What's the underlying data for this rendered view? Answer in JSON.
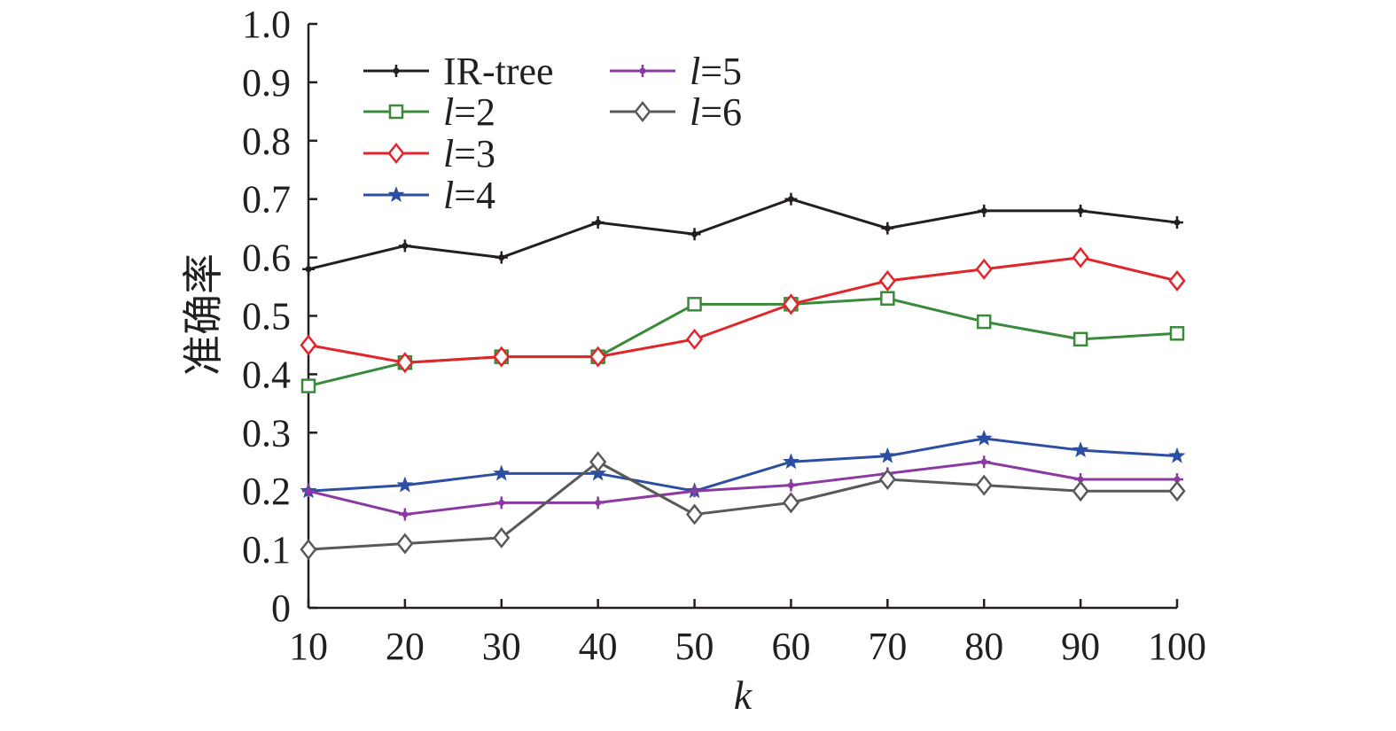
{
  "chart_data": {
    "type": "line",
    "title": "",
    "xlabel": "k",
    "ylabel": "准确率",
    "x": [
      10,
      20,
      30,
      40,
      50,
      60,
      70,
      80,
      90,
      100
    ],
    "xticks": [
      "10",
      "20",
      "30",
      "40",
      "50",
      "60",
      "70",
      "80",
      "90",
      "100"
    ],
    "ylim": [
      0,
      1.0
    ],
    "yticks": [
      "0",
      "0.1",
      "0.2",
      "0.3",
      "0.4",
      "0.5",
      "0.6",
      "0.7",
      "0.8",
      "0.9",
      "1.0"
    ],
    "grid": false,
    "legend_position": "top-left",
    "series": [
      {
        "name": "IR-tree",
        "prefix": "IR-tree",
        "eq": "",
        "color": "#231f20",
        "marker": "plus-dot",
        "values": [
          0.58,
          0.62,
          0.6,
          0.66,
          0.64,
          0.7,
          0.65,
          0.68,
          0.68,
          0.66
        ]
      },
      {
        "name": "l=2",
        "prefix": "l",
        "eq": "=2",
        "color": "#3a8a3c",
        "marker": "square",
        "values": [
          0.38,
          0.42,
          0.43,
          0.43,
          0.52,
          0.52,
          0.53,
          0.49,
          0.46,
          0.47
        ]
      },
      {
        "name": "l=3",
        "prefix": "l",
        "eq": "=3",
        "color": "#e0262b",
        "marker": "diamond",
        "values": [
          0.45,
          0.42,
          0.43,
          0.43,
          0.46,
          0.52,
          0.56,
          0.58,
          0.6,
          0.56
        ]
      },
      {
        "name": "l=4",
        "prefix": "l",
        "eq": "=4",
        "color": "#2d4fa3",
        "marker": "star",
        "values": [
          0.2,
          0.21,
          0.23,
          0.23,
          0.2,
          0.25,
          0.26,
          0.29,
          0.27,
          0.26
        ]
      },
      {
        "name": "l=5",
        "prefix": "l",
        "eq": "=5",
        "color": "#8a3aa0",
        "marker": "plus-dot",
        "values": [
          0.2,
          0.16,
          0.18,
          0.18,
          0.2,
          0.21,
          0.23,
          0.25,
          0.22,
          0.22
        ]
      },
      {
        "name": "l=6",
        "prefix": "l",
        "eq": "=6",
        "color": "#595959",
        "marker": "diamond",
        "values": [
          0.1,
          0.11,
          0.12,
          0.25,
          0.16,
          0.18,
          0.22,
          0.21,
          0.2,
          0.2
        ]
      }
    ]
  }
}
